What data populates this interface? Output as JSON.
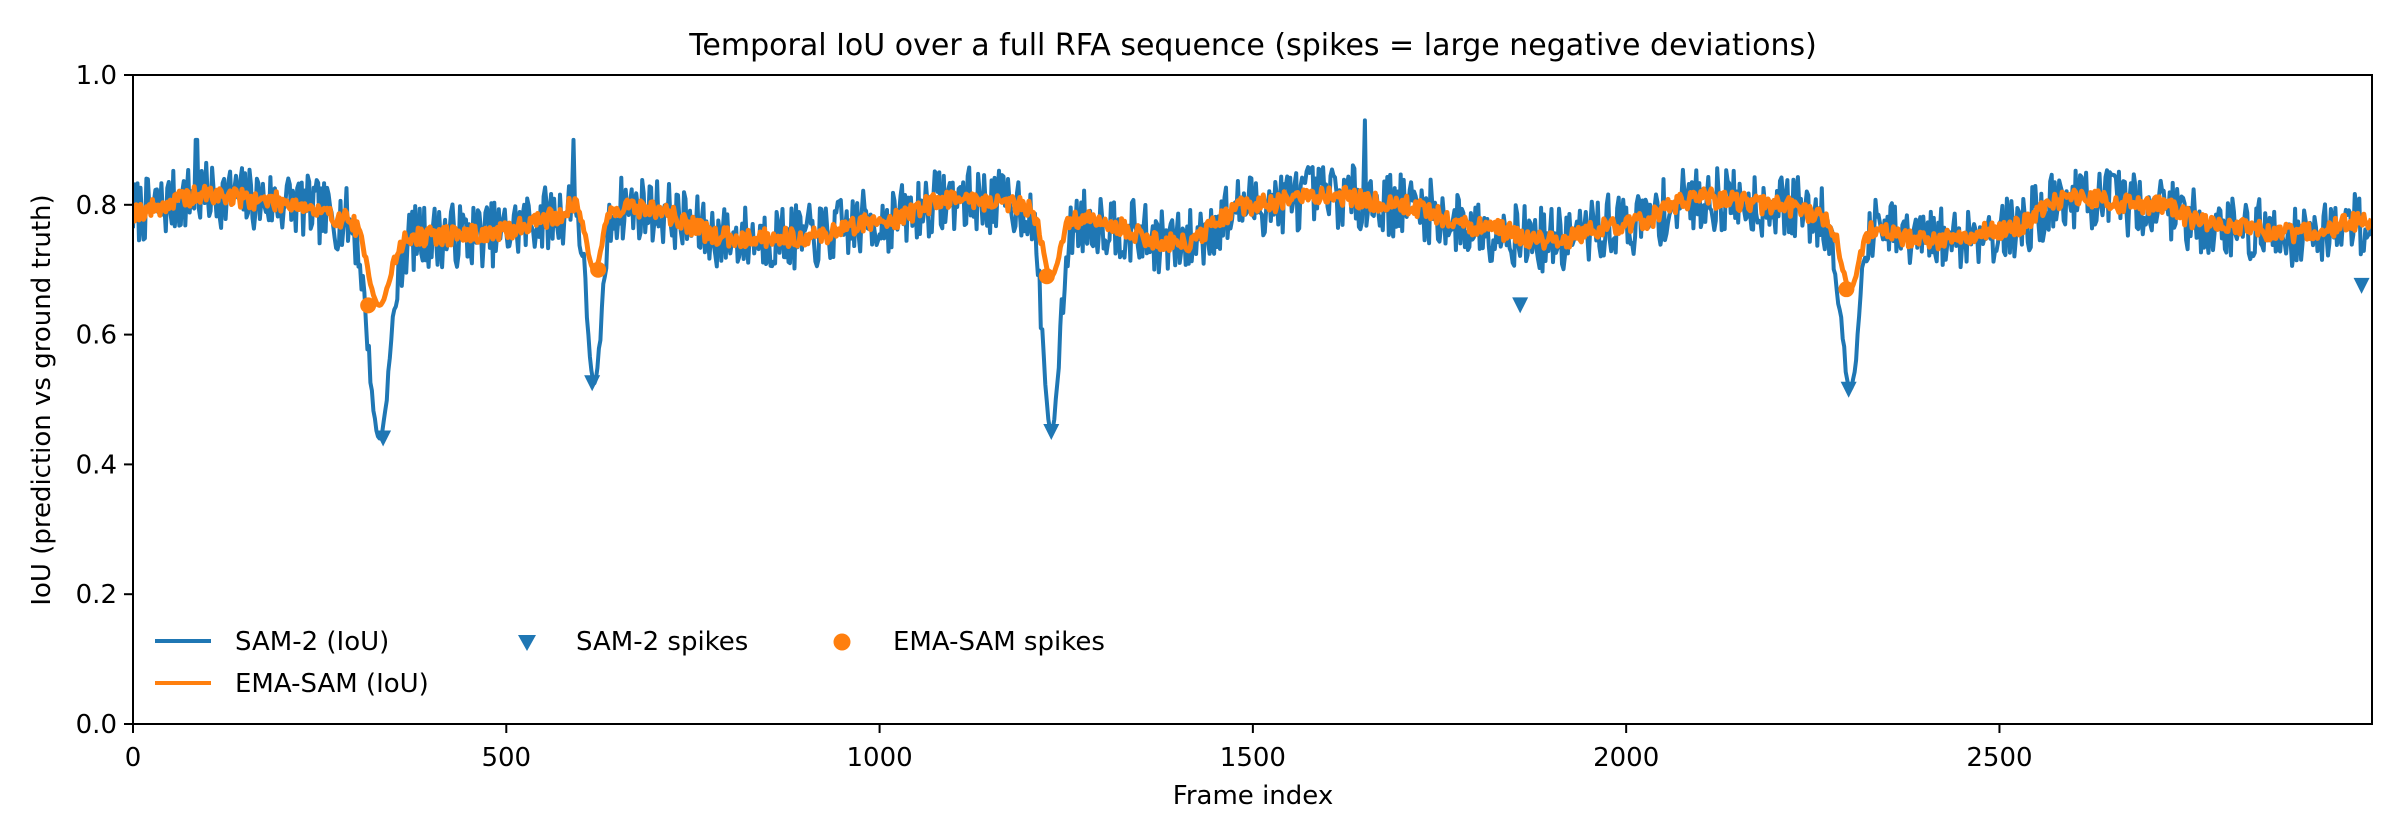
{
  "chart_data": {
    "type": "line",
    "title": "Temporal IoU over a full RFA sequence (spikes = large negative deviations)",
    "xlabel": "Frame index",
    "ylabel": "IoU (prediction vs ground truth)",
    "xlim": [
      0,
      2999
    ],
    "ylim": [
      0.0,
      1.0
    ],
    "xticks": [
      0,
      500,
      1000,
      1500,
      2000,
      2500
    ],
    "yticks": [
      0.0,
      0.2,
      0.4,
      0.6,
      0.8,
      1.0
    ],
    "xtick_labels": [
      "0",
      "500",
      "1000",
      "1500",
      "2000",
      "2500"
    ],
    "ytick_labels": [
      "0.0",
      "0.2",
      "0.4",
      "0.6",
      "0.8",
      "1.0"
    ],
    "grid": false,
    "legend_position": "lower-left",
    "legend": {
      "sam2": "SAM-2 (IoU)",
      "ema": "EMA-SAM (IoU)",
      "sam2_spikes": "SAM-2 spikes",
      "ema_spikes": "EMA-SAM spikes"
    },
    "colors": {
      "sam2": "#1f77b4",
      "ema": "#ff7f0e",
      "axis": "#000000"
    },
    "baseline": [
      [
        0,
        0.79
      ],
      [
        100,
        0.815
      ],
      [
        200,
        0.805
      ],
      [
        280,
        0.78
      ],
      [
        360,
        0.75
      ],
      [
        480,
        0.755
      ],
      [
        560,
        0.78
      ],
      [
        595,
        0.8
      ],
      [
        680,
        0.795
      ],
      [
        800,
        0.75
      ],
      [
        900,
        0.75
      ],
      [
        1000,
        0.775
      ],
      [
        1100,
        0.81
      ],
      [
        1200,
        0.8
      ],
      [
        1280,
        0.775
      ],
      [
        1400,
        0.74
      ],
      [
        1500,
        0.8
      ],
      [
        1600,
        0.815
      ],
      [
        1700,
        0.8
      ],
      [
        1800,
        0.765
      ],
      [
        1900,
        0.745
      ],
      [
        2000,
        0.77
      ],
      [
        2100,
        0.81
      ],
      [
        2200,
        0.8
      ],
      [
        2300,
        0.77
      ],
      [
        2400,
        0.745
      ],
      [
        2500,
        0.76
      ],
      [
        2600,
        0.81
      ],
      [
        2700,
        0.8
      ],
      [
        2800,
        0.765
      ],
      [
        2900,
        0.755
      ],
      [
        2999,
        0.775
      ]
    ],
    "series": [
      {
        "name": "SAM-2 (IoU)",
        "noise_amplitude": 0.05,
        "seed": 7
      },
      {
        "name": "EMA-SAM (IoU)",
        "noise_amplitude": 0.015,
        "seed": 19
      }
    ],
    "dips": [
      {
        "center": 330,
        "sam2_min": 0.44,
        "ema_min": 0.645,
        "width": 20
      },
      {
        "center": 618,
        "sam2_min": 0.525,
        "ema_min": 0.7,
        "width": 14
      },
      {
        "center": 1230,
        "sam2_min": 0.45,
        "ema_min": 0.69,
        "width": 16
      },
      {
        "center": 2300,
        "sam2_min": 0.515,
        "ema_min": 0.67,
        "width": 16
      }
    ],
    "sam2_peaks": [
      {
        "x": 85,
        "y": 0.9
      },
      {
        "x": 590,
        "y": 0.9
      },
      {
        "x": 1650,
        "y": 0.93
      }
    ],
    "sam2_spikes": [
      {
        "x": 335,
        "y": 0.44
      },
      {
        "x": 615,
        "y": 0.525
      },
      {
        "x": 1230,
        "y": 0.45
      },
      {
        "x": 1858,
        "y": 0.645
      },
      {
        "x": 2298,
        "y": 0.515
      },
      {
        "x": 2985,
        "y": 0.675
      }
    ],
    "ema_spikes": [
      {
        "x": 315,
        "y": 0.645
      },
      {
        "x": 623,
        "y": 0.7
      },
      {
        "x": 1224,
        "y": 0.69
      },
      {
        "x": 2295,
        "y": 0.67
      }
    ]
  }
}
